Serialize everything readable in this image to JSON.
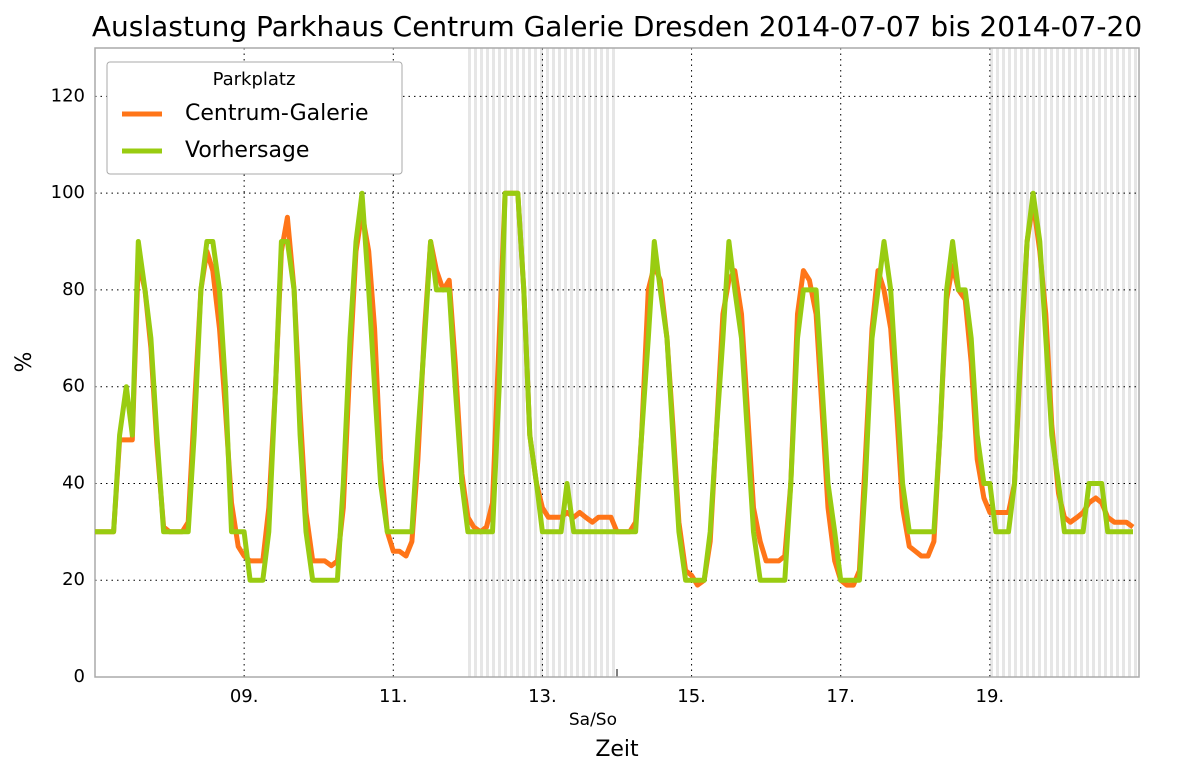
{
  "chart_data": {
    "type": "line",
    "title": "Auslastung Parkhaus Centrum Galerie Dresden 2014-07-07 bis 2014-07-20",
    "x_label": "Zeit",
    "y_label": "%",
    "legend_title": "Parkplatz",
    "legend": "upper left",
    "grid": true,
    "xlim": [
      7,
      21
    ],
    "ylim": [
      0,
      130
    ],
    "xticks": [
      {
        "value": 9,
        "label": "09."
      },
      {
        "value": 11,
        "label": "11."
      },
      {
        "value": 13,
        "label": "13."
      },
      {
        "value": 15,
        "label": "15."
      },
      {
        "value": 17,
        "label": "17."
      },
      {
        "value": 19,
        "label": "19."
      }
    ],
    "minor_xticks": [
      {
        "value": 14,
        "label": "Sa/So"
      }
    ],
    "yticks": [
      0,
      20,
      40,
      60,
      80,
      100,
      120
    ],
    "shaded_spans": [
      [
        12,
        14
      ],
      [
        19,
        21
      ]
    ],
    "x": [
      7,
      7.08,
      7.17,
      7.25,
      7.33,
      7.42,
      7.5,
      7.58,
      7.67,
      7.75,
      7.83,
      7.92,
      8,
      8.08,
      8.17,
      8.25,
      8.33,
      8.42,
      8.5,
      8.58,
      8.67,
      8.75,
      8.83,
      8.92,
      9,
      9.08,
      9.17,
      9.25,
      9.33,
      9.42,
      9.5,
      9.58,
      9.67,
      9.75,
      9.83,
      9.92,
      10,
      10.08,
      10.17,
      10.25,
      10.33,
      10.42,
      10.5,
      10.58,
      10.67,
      10.75,
      10.83,
      10.92,
      11,
      11.08,
      11.17,
      11.25,
      11.33,
      11.42,
      11.5,
      11.58,
      11.67,
      11.75,
      11.83,
      11.92,
      12,
      12.08,
      12.17,
      12.25,
      12.33,
      12.42,
      12.5,
      12.58,
      12.67,
      12.75,
      12.83,
      12.92,
      13,
      13.08,
      13.17,
      13.25,
      13.33,
      13.42,
      13.5,
      13.58,
      13.67,
      13.75,
      13.83,
      13.92,
      14,
      14.08,
      14.17,
      14.25,
      14.33,
      14.42,
      14.5,
      14.58,
      14.67,
      14.75,
      14.83,
      14.92,
      15,
      15.08,
      15.17,
      15.25,
      15.33,
      15.42,
      15.5,
      15.58,
      15.67,
      15.75,
      15.83,
      15.92,
      16,
      16.08,
      16.17,
      16.25,
      16.33,
      16.42,
      16.5,
      16.58,
      16.67,
      16.75,
      16.83,
      16.92,
      17,
      17.08,
      17.17,
      17.25,
      17.33,
      17.42,
      17.5,
      17.58,
      17.67,
      17.75,
      17.83,
      17.92,
      18,
      18.08,
      18.17,
      18.25,
      18.33,
      18.42,
      18.5,
      18.58,
      18.67,
      18.75,
      18.83,
      18.92,
      19,
      19.08,
      19.17,
      19.25,
      19.33,
      19.42,
      19.5,
      19.58,
      19.67,
      19.75,
      19.83,
      19.92,
      20,
      20.08,
      20.17,
      20.25,
      20.33,
      20.42,
      20.5,
      20.58,
      20.67,
      20.75,
      20.83,
      20.92
    ],
    "series": [
      {
        "name": "Centrum-Galerie",
        "color": "#ff7518",
        "values": [
          30,
          30,
          30,
          30,
          49,
          49,
          49,
          86,
          80,
          68,
          48,
          31,
          30,
          30,
          30,
          32,
          55,
          80,
          88,
          84,
          72,
          55,
          36,
          27,
          25,
          24,
          24,
          24,
          35,
          60,
          88,
          95,
          80,
          55,
          34,
          24,
          24,
          24,
          23,
          24,
          35,
          65,
          88,
          96,
          88,
          72,
          45,
          30,
          26,
          26,
          25,
          28,
          45,
          72,
          90,
          84,
          80,
          82,
          65,
          42,
          33,
          31,
          30,
          31,
          36,
          70,
          100,
          100,
          100,
          80,
          50,
          40,
          35,
          33,
          33,
          33,
          34,
          33,
          34,
          33,
          32,
          33,
          33,
          33,
          30,
          30,
          30,
          32,
          50,
          80,
          85,
          82,
          70,
          52,
          32,
          22,
          21,
          19,
          20,
          28,
          50,
          75,
          82,
          84,
          75,
          55,
          35,
          28,
          24,
          24,
          24,
          25,
          40,
          75,
          84,
          82,
          75,
          55,
          35,
          24,
          20,
          19,
          19,
          22,
          45,
          72,
          84,
          80,
          72,
          55,
          35,
          27,
          26,
          25,
          25,
          28,
          50,
          78,
          85,
          80,
          78,
          65,
          45,
          37,
          34,
          34,
          34,
          34,
          40,
          68,
          90,
          98,
          88,
          75,
          52,
          38,
          33,
          32,
          33,
          34,
          36,
          37,
          36,
          33,
          32,
          32,
          32,
          31
        ]
      },
      {
        "name": "Vorhersage",
        "color": "#99cc11",
        "values": [
          30,
          30,
          30,
          30,
          50,
          60,
          50,
          90,
          80,
          70,
          50,
          30,
          30,
          30,
          30,
          30,
          50,
          80,
          90,
          90,
          80,
          60,
          30,
          30,
          30,
          20,
          20,
          20,
          30,
          60,
          90,
          90,
          80,
          50,
          30,
          20,
          20,
          20,
          20,
          20,
          40,
          70,
          90,
          100,
          80,
          60,
          40,
          30,
          30,
          30,
          30,
          30,
          50,
          70,
          90,
          80,
          80,
          80,
          60,
          40,
          30,
          30,
          30,
          30,
          30,
          60,
          100,
          100,
          100,
          80,
          50,
          40,
          30,
          30,
          30,
          30,
          40,
          30,
          30,
          30,
          30,
          30,
          30,
          30,
          30,
          30,
          30,
          30,
          50,
          70,
          90,
          80,
          70,
          50,
          30,
          20,
          20,
          20,
          20,
          30,
          50,
          70,
          90,
          80,
          70,
          50,
          30,
          20,
          20,
          20,
          20,
          20,
          40,
          70,
          80,
          80,
          80,
          60,
          40,
          30,
          20,
          20,
          20,
          20,
          40,
          70,
          80,
          90,
          80,
          60,
          40,
          30,
          30,
          30,
          30,
          30,
          50,
          80,
          90,
          80,
          80,
          70,
          50,
          40,
          40,
          30,
          30,
          30,
          40,
          70,
          90,
          100,
          90,
          70,
          50,
          40,
          30,
          30,
          30,
          30,
          40,
          40,
          40,
          30,
          30,
          30,
          30,
          30
        ]
      }
    ]
  }
}
